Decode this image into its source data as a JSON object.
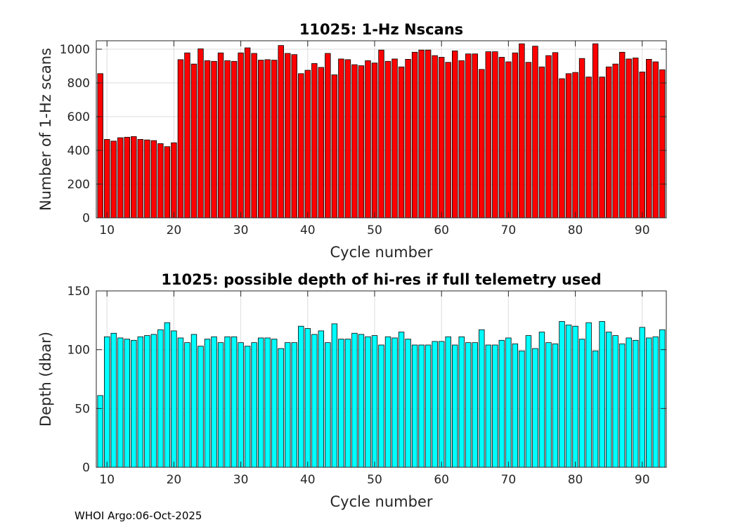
{
  "footer": "WHOI Argo:06-Oct-2025",
  "chart_data": [
    {
      "type": "bar",
      "title": "11025: 1-Hz Nscans",
      "xlabel": "Cycle number",
      "ylabel": "Number of 1-Hz scans",
      "xlim": [
        8.4,
        93.6
      ],
      "ylim": [
        0,
        1050
      ],
      "xticks": [
        10,
        20,
        30,
        40,
        50,
        60,
        70,
        80,
        90
      ],
      "yticks": [
        0,
        200,
        400,
        600,
        800,
        1000
      ],
      "grid": true,
      "bar_color": "#ff0000",
      "cycle_start": 9,
      "values": [
        855,
        465,
        455,
        475,
        478,
        482,
        465,
        462,
        458,
        440,
        422,
        445,
        938,
        978,
        912,
        1002,
        932,
        928,
        978,
        932,
        928,
        978,
        1008,
        975,
        935,
        938,
        935,
        1022,
        975,
        968,
        855,
        875,
        915,
        892,
        975,
        848,
        942,
        938,
        908,
        902,
        932,
        918,
        995,
        928,
        942,
        895,
        940,
        982,
        995,
        995,
        962,
        952,
        922,
        990,
        932,
        972,
        972,
        880,
        985,
        985,
        952,
        925,
        978,
        1032,
        922,
        1018,
        895,
        962,
        980,
        825,
        855,
        862,
        945,
        835,
        1032,
        835,
        895,
        912,
        982,
        942,
        948,
        865,
        940,
        925,
        878
      ]
    },
    {
      "type": "bar",
      "title": "11025: possible depth of hi-res if full telemetry used",
      "xlabel": "Cycle number",
      "ylabel": "Depth (dbar)",
      "xlim": [
        8.4,
        93.6
      ],
      "ylim": [
        0,
        150
      ],
      "xticks": [
        10,
        20,
        30,
        40,
        50,
        60,
        70,
        80,
        90
      ],
      "yticks": [
        0,
        50,
        100,
        150
      ],
      "grid": true,
      "bar_color": "#00ffff",
      "cycle_start": 9,
      "values": [
        61,
        111,
        114,
        110,
        109,
        108,
        111,
        112,
        113,
        117,
        123,
        116,
        110,
        106,
        113,
        103,
        109,
        111,
        106,
        111,
        111,
        106,
        103,
        106,
        110,
        110,
        109,
        101,
        106,
        106,
        120,
        118,
        113,
        116,
        106,
        122,
        109,
        109,
        114,
        113,
        111,
        112,
        104,
        111,
        110,
        115,
        109,
        104,
        104,
        104,
        107,
        107,
        111,
        104,
        111,
        106,
        106,
        117,
        104,
        104,
        108,
        110,
        105,
        99,
        112,
        101,
        115,
        106,
        105,
        124,
        121,
        120,
        109,
        123,
        99,
        124,
        115,
        112,
        105,
        110,
        108,
        119,
        110,
        111,
        117
      ]
    }
  ]
}
